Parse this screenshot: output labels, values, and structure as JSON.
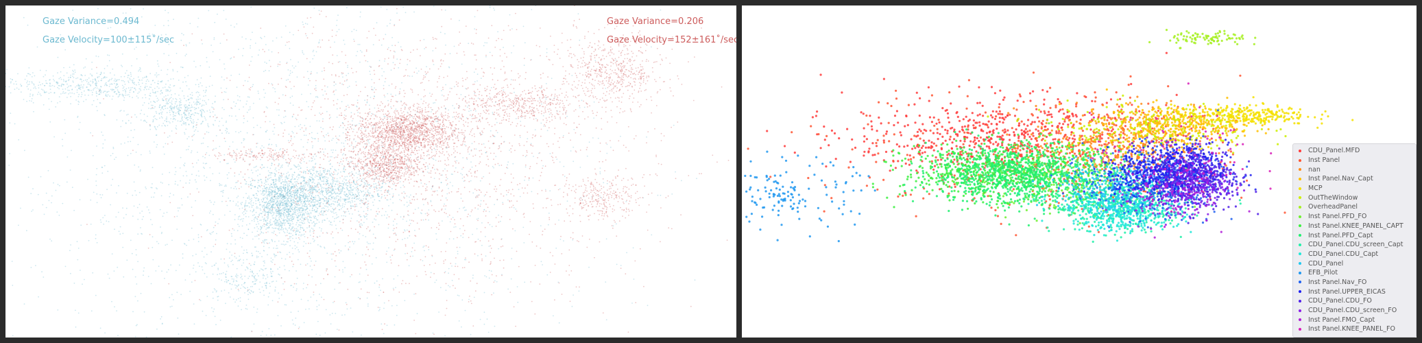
{
  "chart_data": [
    {
      "type": "scatter",
      "title": "",
      "xlabel": "",
      "ylabel": "",
      "grid": false,
      "annotations": [
        {
          "text": "Gaze Variance=0.494",
          "color": "#6cb9d0"
        },
        {
          "text": "Gaze Velocity=100±115˚/sec",
          "color": "#6cb9d0"
        },
        {
          "text": "Gaze Variance=0.206",
          "color": "#cd5c5c"
        },
        {
          "text": "Gaze Velocity=152±161˚/sec",
          "color": "#cd5c5c"
        }
      ],
      "series": [
        {
          "color": "#6cb9d0",
          "clusters": [
            {
              "x": 0.38,
              "y": 0.4,
              "sx": 0.025,
              "sy": 0.05,
              "n": 1300
            },
            {
              "x": 0.44,
              "y": 0.44,
              "sx": 0.04,
              "sy": 0.04,
              "n": 900
            },
            {
              "x": 0.12,
              "y": 0.76,
              "sx": 0.06,
              "sy": 0.025,
              "n": 500
            },
            {
              "x": 0.24,
              "y": 0.68,
              "sx": 0.025,
              "sy": 0.03,
              "n": 320
            },
            {
              "x": 0.33,
              "y": 0.18,
              "sx": 0.03,
              "sy": 0.04,
              "n": 220
            },
            {
              "x": 0.4,
              "y": 0.5,
              "sx": 0.2,
              "sy": 0.28,
              "n": 2400
            }
          ]
        },
        {
          "color": "#cd5c5c",
          "clusters": [
            {
              "x": 0.55,
              "y": 0.62,
              "sx": 0.035,
              "sy": 0.035,
              "n": 1400
            },
            {
              "x": 0.52,
              "y": 0.52,
              "sx": 0.025,
              "sy": 0.03,
              "n": 700
            },
            {
              "x": 0.7,
              "y": 0.7,
              "sx": 0.04,
              "sy": 0.03,
              "n": 420
            },
            {
              "x": 0.83,
              "y": 0.8,
              "sx": 0.035,
              "sy": 0.05,
              "n": 550
            },
            {
              "x": 0.82,
              "y": 0.42,
              "sx": 0.025,
              "sy": 0.03,
              "n": 260
            },
            {
              "x": 0.36,
              "y": 0.55,
              "sx": 0.04,
              "sy": 0.01,
              "n": 160
            },
            {
              "x": 0.58,
              "y": 0.55,
              "sx": 0.15,
              "sy": 0.22,
              "n": 1700
            }
          ]
        }
      ]
    },
    {
      "type": "scatter",
      "title": "",
      "xlabel": "",
      "ylabel": "",
      "grid": false,
      "legend_position": "right",
      "legend": [
        {
          "label": "CDU_Panel.MFD",
          "color": "#ff3c3c"
        },
        {
          "label": "Inst Panel",
          "color": "#ff5533"
        },
        {
          "label": "nan",
          "color": "#ff8c1a"
        },
        {
          "label": "Inst Panel.Nav_Capt",
          "color": "#ffc000"
        },
        {
          "label": "MCP",
          "color": "#f5e000"
        },
        {
          "label": "OutTheWindow",
          "color": "#ccf000"
        },
        {
          "label": "OverheadPanel",
          "color": "#a6f020"
        },
        {
          "label": "Inst Panel.PFD_FO",
          "color": "#70f030"
        },
        {
          "label": "Inst Panel.KNEE_PANEL_CAPT",
          "color": "#3cf040"
        },
        {
          "label": "Inst Panel.PFD_Capt",
          "color": "#20f070"
        },
        {
          "label": "CDU_Panel.CDU_screen_Capt",
          "color": "#20f0a8"
        },
        {
          "label": "CDU_Panel.CDU_Capt",
          "color": "#20e8d8"
        },
        {
          "label": "CDU_Panel",
          "color": "#20c8f0"
        },
        {
          "label": "EFB_Pilot",
          "color": "#2098f0"
        },
        {
          "label": "Inst Panel.Nav_FO",
          "color": "#2060f0"
        },
        {
          "label": "Inst Panel.UPPER_EICAS",
          "color": "#2020f0"
        },
        {
          "label": "CDU_Panel.CDU_FO",
          "color": "#5020e8"
        },
        {
          "label": "CDU_Panel.CDU_screen_FO",
          "color": "#8a1ee8"
        },
        {
          "label": "Inst Panel.FMO_Capt",
          "color": "#b01ed8"
        },
        {
          "label": "Inst Panel.KNEE_PANEL_FO",
          "color": "#d81eb8"
        }
      ],
      "clusters": [
        {
          "label": "CDU_Panel.MFD",
          "x": 0.4,
          "y": 0.6,
          "sx": 0.12,
          "sy": 0.06,
          "n": 700
        },
        {
          "label": "Inst Panel",
          "x": 0.45,
          "y": 0.55,
          "sx": 0.15,
          "sy": 0.1,
          "n": 350
        },
        {
          "label": "nan",
          "x": 0.55,
          "y": 0.58,
          "sx": 0.06,
          "sy": 0.06,
          "n": 380
        },
        {
          "label": "Inst Panel.Nav_Capt",
          "x": 0.64,
          "y": 0.64,
          "sx": 0.05,
          "sy": 0.03,
          "n": 380
        },
        {
          "label": "MCP",
          "x": 0.74,
          "y": 0.67,
          "sx": 0.05,
          "sy": 0.015,
          "n": 300
        },
        {
          "label": "OutTheWindow",
          "x": 0.6,
          "y": 0.63,
          "sx": 0.08,
          "sy": 0.04,
          "n": 220
        },
        {
          "label": "OverheadPanel",
          "x": 0.69,
          "y": 0.9,
          "sx": 0.03,
          "sy": 0.012,
          "n": 90
        },
        {
          "label": "Inst Panel.PFD_FO",
          "x": 0.48,
          "y": 0.48,
          "sx": 0.06,
          "sy": 0.05,
          "n": 300
        },
        {
          "label": "Inst Panel.KNEE_PANEL_CAPT",
          "x": 0.36,
          "y": 0.5,
          "sx": 0.06,
          "sy": 0.04,
          "n": 500
        },
        {
          "label": "Inst Panel.PFD_Capt",
          "x": 0.42,
          "y": 0.49,
          "sx": 0.07,
          "sy": 0.045,
          "n": 900
        },
        {
          "label": "CDU_Panel.CDU_screen_Capt",
          "x": 0.56,
          "y": 0.4,
          "sx": 0.05,
          "sy": 0.04,
          "n": 450
        },
        {
          "label": "CDU_Panel.CDU_Capt",
          "x": 0.57,
          "y": 0.38,
          "sx": 0.04,
          "sy": 0.03,
          "n": 400
        },
        {
          "label": "CDU_Panel",
          "x": 0.54,
          "y": 0.45,
          "sx": 0.04,
          "sy": 0.04,
          "n": 250
        },
        {
          "label": "EFB_Pilot",
          "x": 0.07,
          "y": 0.43,
          "sx": 0.05,
          "sy": 0.05,
          "n": 150
        },
        {
          "label": "Inst Panel.Nav_FO",
          "x": 0.61,
          "y": 0.47,
          "sx": 0.05,
          "sy": 0.05,
          "n": 450
        },
        {
          "label": "Inst Panel.UPPER_EICAS",
          "x": 0.64,
          "y": 0.5,
          "sx": 0.04,
          "sy": 0.04,
          "n": 700
        },
        {
          "label": "CDU_Panel.CDU_FO",
          "x": 0.68,
          "y": 0.48,
          "sx": 0.03,
          "sy": 0.05,
          "n": 300
        },
        {
          "label": "CDU_Panel.CDU_screen_FO",
          "x": 0.66,
          "y": 0.46,
          "sx": 0.03,
          "sy": 0.04,
          "n": 220
        },
        {
          "label": "Inst Panel.FMO_Capt",
          "x": 0.62,
          "y": 0.42,
          "sx": 0.04,
          "sy": 0.04,
          "n": 100
        },
        {
          "label": "Inst Panel.KNEE_PANEL_FO",
          "x": 0.64,
          "y": 0.55,
          "sx": 0.06,
          "sy": 0.06,
          "n": 90
        }
      ]
    }
  ]
}
